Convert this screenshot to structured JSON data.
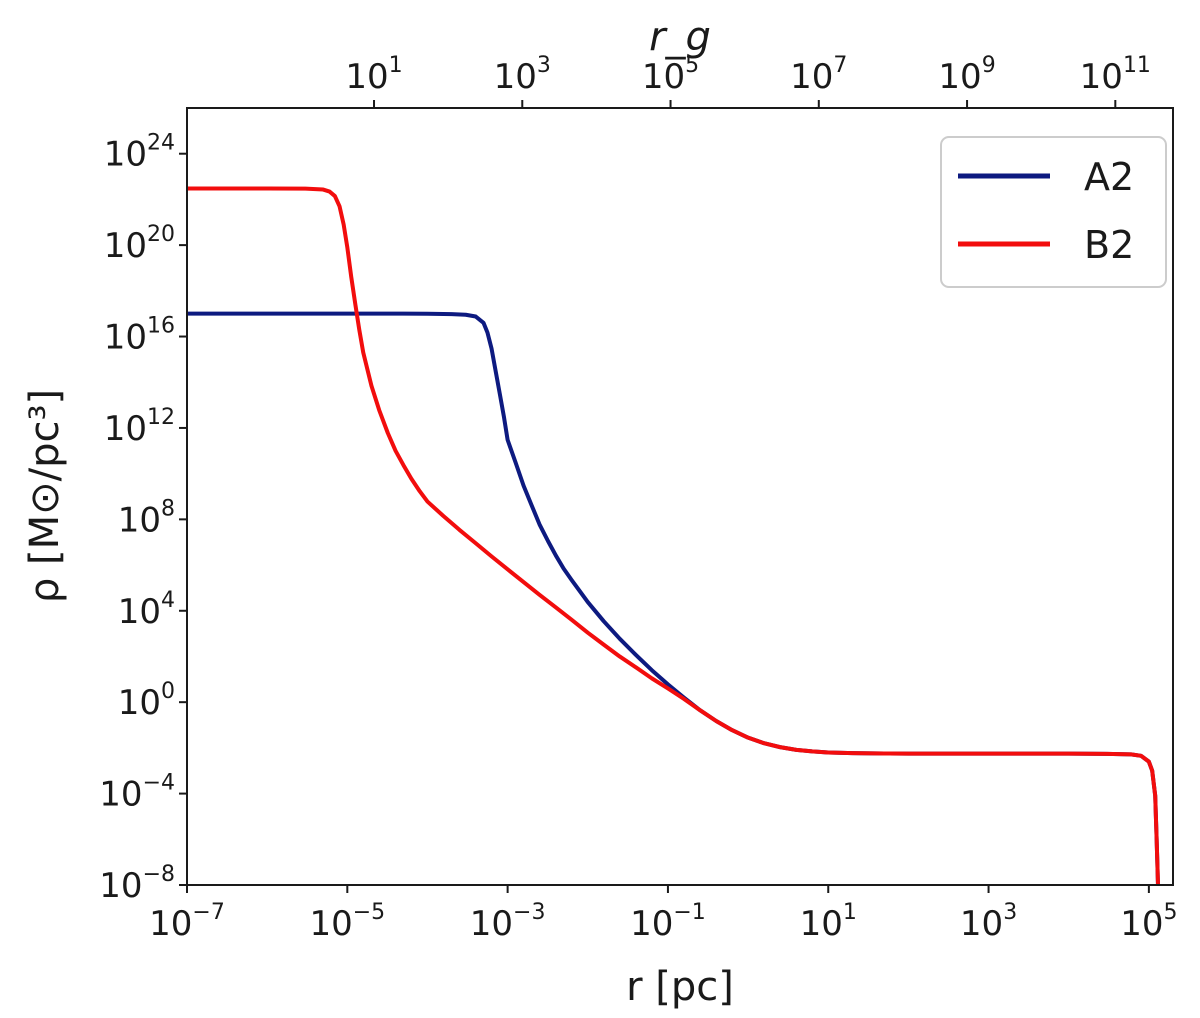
{
  "chart_data": {
    "type": "line",
    "xlabel": "r [pc]",
    "ylabel": "ρ [M⊙/pc³]",
    "top_xlabel": "r_g",
    "x_scale": "log",
    "y_scale": "log",
    "xlim": [
      1e-07,
      200000
    ],
    "ylim": [
      1e-08,
      1e+26
    ],
    "top_xlim": [
      0.03,
      600000000000.0
    ],
    "grid": false,
    "legend_position": "top-right",
    "x_ticks": [
      {
        "base": "10",
        "exp": "−7",
        "value": 1e-07
      },
      {
        "base": "10",
        "exp": "−5",
        "value": 1e-05
      },
      {
        "base": "10",
        "exp": "−3",
        "value": 0.001
      },
      {
        "base": "10",
        "exp": "−1",
        "value": 0.1
      },
      {
        "base": "10",
        "exp": "1",
        "value": 10.0
      },
      {
        "base": "10",
        "exp": "3",
        "value": 1000.0
      },
      {
        "base": "10",
        "exp": "5",
        "value": 100000.0
      }
    ],
    "y_ticks": [
      {
        "base": "10",
        "exp": "−8",
        "value": 1e-08
      },
      {
        "base": "10",
        "exp": "−4",
        "value": 0.0001
      },
      {
        "base": "10",
        "exp": "0",
        "value": 1.0
      },
      {
        "base": "10",
        "exp": "4",
        "value": 10000.0
      },
      {
        "base": "10",
        "exp": "8",
        "value": 100000000.0
      },
      {
        "base": "10",
        "exp": "12",
        "value": 1000000000000.0
      },
      {
        "base": "10",
        "exp": "16",
        "value": 1e+16
      },
      {
        "base": "10",
        "exp": "20",
        "value": 1e+20
      },
      {
        "base": "10",
        "exp": "24",
        "value": 1e+24
      }
    ],
    "top_ticks": [
      {
        "base": "10",
        "exp": "1",
        "value": 10.0
      },
      {
        "base": "10",
        "exp": "3",
        "value": 1000.0
      },
      {
        "base": "10",
        "exp": "5",
        "value": 100000.0
      },
      {
        "base": "10",
        "exp": "7",
        "value": 10000000.0
      },
      {
        "base": "10",
        "exp": "9",
        "value": 1000000000.0
      },
      {
        "base": "10",
        "exp": "11",
        "value": 100000000000.0
      }
    ],
    "series": [
      {
        "name": "A2",
        "color": "#0d1a80",
        "x": [
          1e-07,
          1e-06,
          1e-05,
          5e-05,
          0.0001,
          0.0002,
          0.0003,
          0.0004,
          0.0005,
          0.00056,
          0.00063,
          0.00071,
          0.0008,
          0.0009,
          0.001,
          0.00126,
          0.00158,
          0.002,
          0.0025,
          0.0032,
          0.004,
          0.005,
          0.0063,
          0.008,
          0.01,
          0.0158,
          0.025,
          0.04,
          0.063,
          0.1,
          0.158,
          0.25,
          0.4,
          0.63,
          1,
          1.58,
          2.5,
          4,
          6.3,
          10,
          20,
          50,
          100,
          1000,
          10000,
          30000,
          60000,
          80000,
          100000,
          110000,
          120000,
          125000,
          130000
        ],
        "y": [
          1e+17,
          1e+17,
          1e+17,
          1e+17,
          9.9e+16,
          9.6e+16,
          9e+16,
          7.5e+16,
          4e+16,
          1.5e+16,
          3000000000000000.0,
          300000000000000.0,
          30000000000000.0,
          3000000000000.0,
          300000000000.0,
          30000000000.0,
          3000000000.0,
          400000000.0,
          60000000.0,
          11000000.0,
          2600000.0,
          700000.0,
          220000.0,
          70000.0,
          24000.0,
          3500.0,
          600,
          115,
          25,
          6,
          1.6,
          0.45,
          0.15,
          0.06,
          0.028,
          0.016,
          0.0108,
          0.0082,
          0.007,
          0.0063,
          0.0059,
          0.0057,
          0.0056,
          0.0056,
          0.0056,
          0.0055,
          0.0052,
          0.0045,
          0.0025,
          0.001,
          8e-05,
          1e-06,
          1e-08
        ]
      },
      {
        "name": "B2",
        "color": "#f20d0d",
        "x": [
          1e-07,
          1e-06,
          3e-06,
          5e-06,
          6e-06,
          7e-06,
          8e-06,
          9e-06,
          1e-05,
          1.12e-05,
          1.26e-05,
          1.41e-05,
          1.58e-05,
          2e-05,
          2.5e-05,
          3.2e-05,
          4e-05,
          5e-05,
          6.3e-05,
          8e-05,
          0.0001,
          0.000158,
          0.00025,
          0.0004,
          0.00063,
          0.001,
          0.00158,
          0.0025,
          0.004,
          0.0063,
          0.01,
          0.0158,
          0.025,
          0.04,
          0.063,
          0.1,
          0.158,
          0.25,
          0.4,
          0.63,
          1,
          1.58,
          2.5,
          4,
          6.3,
          10,
          20,
          50,
          100,
          1000,
          10000,
          30000,
          60000,
          80000,
          100000,
          110000,
          120000,
          125000,
          130000
        ],
        "y": [
          3e+22,
          3e+22,
          2.95e+22,
          2.7e+22,
          2.2e+22,
          1.4e+22,
          5e+21,
          8e+20,
          8e+19,
          4e+18,
          2.5e+17,
          2e+16,
          2000000000000000.0,
          70000000000000.0,
          6000000000000.0,
          600000000000.0,
          100000000000.0,
          24000000000.0,
          6000000000.0,
          1700000000.0,
          600000000.0,
          140000000.0,
          35000000.0,
          9000000.0,
          2400000.0,
          650000.0,
          180000.0,
          50000.0,
          14000.0,
          4000.0,
          1100.0,
          330,
          100,
          33,
          11,
          4,
          1.4,
          0.45,
          0.15,
          0.06,
          0.028,
          0.016,
          0.0108,
          0.0082,
          0.007,
          0.0063,
          0.0059,
          0.0057,
          0.0056,
          0.0056,
          0.0056,
          0.0055,
          0.0052,
          0.0045,
          0.0025,
          0.001,
          8e-05,
          1e-06,
          1e-08
        ]
      }
    ]
  }
}
